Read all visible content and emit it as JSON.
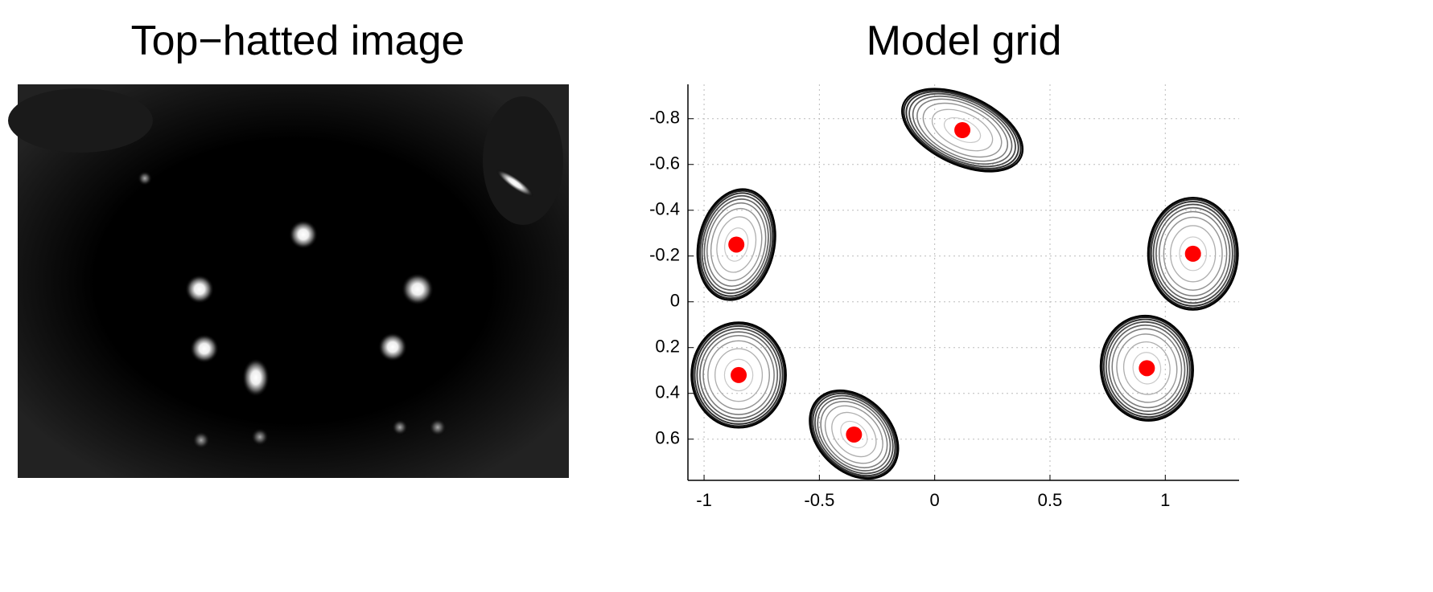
{
  "chart_data": [
    {
      "type": "image",
      "title": "Top−hatted image"
    },
    {
      "type": "scatter",
      "title": "Model grid",
      "x": [
        0.12,
        -0.86,
        1.12,
        -0.85,
        0.92,
        -0.35
      ],
      "y": [
        -0.75,
        -0.25,
        -0.21,
        0.32,
        0.29,
        0.58
      ],
      "color": "#ff0000",
      "ellipses": [
        {
          "rx": 0.28,
          "ry": 0.15,
          "angle": 25
        },
        {
          "rx": 0.165,
          "ry": 0.245,
          "angle": 12
        },
        {
          "rx": 0.195,
          "ry": 0.245,
          "angle": 0
        },
        {
          "rx": 0.205,
          "ry": 0.23,
          "angle": 0
        },
        {
          "rx": 0.2,
          "ry": 0.23,
          "angle": -8
        },
        {
          "rx": 0.22,
          "ry": 0.16,
          "angle": 45
        }
      ],
      "contour_levels": [
        0.3,
        0.5,
        0.65,
        0.75,
        0.82,
        0.88,
        0.93,
        0.97,
        1.0
      ],
      "xlim": [
        -1.07,
        1.32
      ],
      "xticks": [
        -1,
        -0.5,
        0,
        0.5,
        1
      ],
      "ylim": [
        -0.95,
        0.78
      ],
      "yticks": [
        -0.8,
        -0.6,
        -0.4,
        -0.2,
        0,
        0.2,
        0.4,
        0.6
      ],
      "y_reversed": true,
      "grid": true
    }
  ]
}
